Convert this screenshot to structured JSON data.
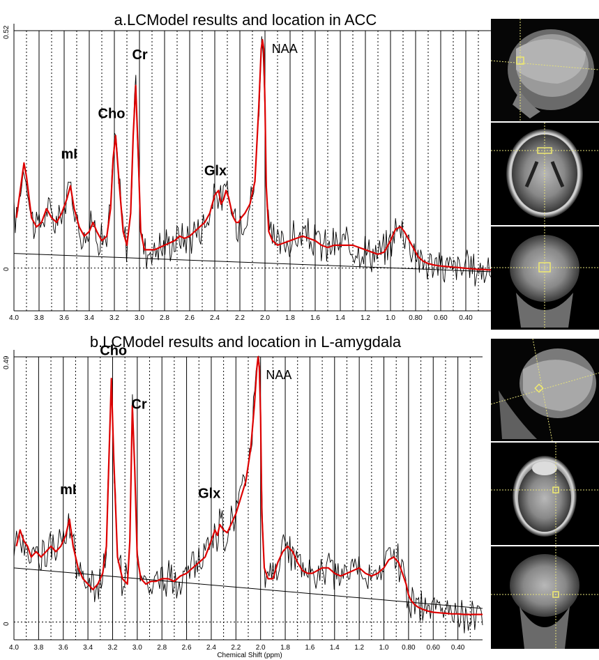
{
  "chart_data": [
    {
      "type": "line",
      "title": "a.LCModel results and location in ACC",
      "xlabel": "",
      "xlim": [
        4.0,
        0.2
      ],
      "x_ticks": [
        4.0,
        3.8,
        3.6,
        3.4,
        3.2,
        3.0,
        2.8,
        2.6,
        2.4,
        2.2,
        2.0,
        1.8,
        1.6,
        1.4,
        1.2,
        1.0,
        0.8,
        0.6,
        0.4
      ],
      "x_tick_labels": [
        "4.0",
        "3.8",
        "3.6",
        "3.4",
        "3.2",
        "3.0",
        "2.8",
        "2.6",
        "2.4",
        "2.2",
        "2.0",
        "1.8",
        "1.6",
        "1.4",
        "1.2",
        "1.0",
        "0.80",
        "0.60",
        "0.40"
      ],
      "ylim": [
        -0.08,
        0.52
      ],
      "y_tick_labels": [
        "0.52",
        "0"
      ],
      "peak_labels": [
        {
          "text": "mI",
          "ppm": 3.56
        },
        {
          "text": "Cho",
          "ppm": 3.2
        },
        {
          "text": "Cr",
          "ppm": 3.03
        },
        {
          "text": "Glx",
          "ppm": 2.35
        },
        {
          "text": "NAA",
          "ppm": 2.01
        }
      ],
      "series": [
        {
          "role": "fit",
          "color": "#dd0000",
          "x": [
            3.98,
            3.94,
            3.92,
            3.9,
            3.86,
            3.82,
            3.78,
            3.74,
            3.7,
            3.66,
            3.62,
            3.58,
            3.55,
            3.52,
            3.48,
            3.44,
            3.4,
            3.37,
            3.34,
            3.3,
            3.26,
            3.23,
            3.21,
            3.19,
            3.16,
            3.13,
            3.1,
            3.07,
            3.05,
            3.03,
            3.01,
            2.99,
            2.96,
            2.92,
            2.88,
            2.84,
            2.8,
            2.76,
            2.72,
            2.68,
            2.64,
            2.6,
            2.56,
            2.52,
            2.48,
            2.44,
            2.4,
            2.37,
            2.35,
            2.33,
            2.31,
            2.29,
            2.27,
            2.25,
            2.23,
            2.21,
            2.19,
            2.16,
            2.12,
            2.08,
            2.05,
            2.03,
            2.02,
            2.01,
            2.0,
            1.99,
            1.97,
            1.94,
            1.9,
            1.85,
            1.8,
            1.75,
            1.7,
            1.65,
            1.6,
            1.55,
            1.5,
            1.45,
            1.4,
            1.35,
            1.3,
            1.25,
            1.2,
            1.15,
            1.1,
            1.05,
            1.0,
            0.96,
            0.92,
            0.89,
            0.86,
            0.82,
            0.78,
            0.74,
            0.7,
            0.66,
            0.62,
            0.58,
            0.54,
            0.5,
            0.46,
            0.42,
            0.38,
            0.34,
            0.3,
            0.26,
            0.22,
            0.2
          ],
          "y": [
            0.11,
            0.19,
            0.23,
            0.2,
            0.11,
            0.09,
            0.1,
            0.13,
            0.11,
            0.1,
            0.12,
            0.15,
            0.18,
            0.13,
            0.09,
            0.07,
            0.08,
            0.1,
            0.08,
            0.06,
            0.07,
            0.13,
            0.24,
            0.29,
            0.18,
            0.08,
            0.05,
            0.12,
            0.29,
            0.4,
            0.25,
            0.08,
            0.04,
            0.04,
            0.04,
            0.045,
            0.05,
            0.055,
            0.06,
            0.07,
            0.065,
            0.07,
            0.08,
            0.09,
            0.1,
            0.12,
            0.16,
            0.17,
            0.14,
            0.15,
            0.17,
            0.155,
            0.13,
            0.11,
            0.1,
            0.1,
            0.11,
            0.12,
            0.14,
            0.19,
            0.35,
            0.48,
            0.5,
            0.48,
            0.36,
            0.18,
            0.08,
            0.06,
            0.05,
            0.055,
            0.06,
            0.065,
            0.07,
            0.065,
            0.06,
            0.05,
            0.045,
            0.05,
            0.05,
            0.05,
            0.05,
            0.045,
            0.04,
            0.035,
            0.03,
            0.035,
            0.06,
            0.085,
            0.09,
            0.08,
            0.065,
            0.045,
            0.025,
            0.015,
            0.01,
            0.007,
            0.005,
            0.004,
            0.003,
            0.002,
            0.001,
            0.0,
            -0.001,
            -0.002,
            -0.003,
            -0.003,
            -0.004,
            -0.004
          ]
        },
        {
          "role": "baseline",
          "color": "#000000",
          "x": [
            4.0,
            0.2
          ],
          "y": [
            0.032,
            -0.008
          ]
        }
      ]
    },
    {
      "type": "line",
      "title": "b.LCModel results and location in L-amygdala",
      "xlabel": "Chemical Shift (ppm)",
      "xlim": [
        4.0,
        0.2
      ],
      "x_ticks": [
        4.0,
        3.8,
        3.6,
        3.4,
        3.2,
        3.0,
        2.8,
        2.6,
        2.4,
        2.2,
        2.0,
        1.8,
        1.6,
        1.4,
        1.2,
        1.0,
        0.8,
        0.6,
        0.4
      ],
      "x_tick_labels": [
        "4.0",
        "3.8",
        "3.6",
        "3.4",
        "3.2",
        "3.0",
        "2.8",
        "2.6",
        "2.4",
        "2.2",
        "2.0",
        "1.8",
        "1.6",
        "1.4",
        "1.2",
        "1.0",
        "0.80",
        "0.60",
        "0.40"
      ],
      "ylim": [
        -0.02,
        0.49
      ],
      "y_tick_labels": [
        "0.49",
        "0"
      ],
      "peak_labels": [
        {
          "text": "mI",
          "ppm": 3.56
        },
        {
          "text": "Cho",
          "ppm": 3.21
        },
        {
          "text": "Cr",
          "ppm": 3.03
        },
        {
          "text": "Glx",
          "ppm": 2.37
        },
        {
          "text": "NAA",
          "ppm": 2.01
        }
      ],
      "series": [
        {
          "role": "fit",
          "color": "#dd0000",
          "x": [
            3.98,
            3.95,
            3.92,
            3.89,
            3.86,
            3.82,
            3.78,
            3.74,
            3.7,
            3.66,
            3.62,
            3.58,
            3.55,
            3.52,
            3.48,
            3.44,
            3.4,
            3.36,
            3.32,
            3.28,
            3.25,
            3.23,
            3.21,
            3.19,
            3.16,
            3.12,
            3.08,
            3.06,
            3.04,
            3.02,
            3.0,
            2.97,
            2.93,
            2.89,
            2.85,
            2.8,
            2.75,
            2.7,
            2.65,
            2.6,
            2.55,
            2.5,
            2.45,
            2.4,
            2.37,
            2.35,
            2.33,
            2.3,
            2.27,
            2.24,
            2.2,
            2.16,
            2.12,
            2.08,
            2.05,
            2.03,
            2.02,
            2.01,
            2.0,
            1.99,
            1.97,
            1.94,
            1.9,
            1.86,
            1.82,
            1.78,
            1.74,
            1.7,
            1.66,
            1.62,
            1.58,
            1.54,
            1.5,
            1.45,
            1.4,
            1.35,
            1.3,
            1.25,
            1.2,
            1.15,
            1.1,
            1.05,
            1.0,
            0.96,
            0.92,
            0.88,
            0.85,
            0.82,
            0.8,
            0.78,
            0.75,
            0.72,
            0.68,
            0.64,
            0.6,
            0.55,
            0.5,
            0.45,
            0.4,
            0.35,
            0.3,
            0.25,
            0.2
          ],
          "y": [
            0.14,
            0.17,
            0.15,
            0.14,
            0.12,
            0.13,
            0.12,
            0.13,
            0.14,
            0.13,
            0.14,
            0.16,
            0.19,
            0.14,
            0.1,
            0.08,
            0.07,
            0.06,
            0.07,
            0.09,
            0.14,
            0.3,
            0.45,
            0.3,
            0.12,
            0.08,
            0.07,
            0.15,
            0.4,
            0.28,
            0.12,
            0.08,
            0.07,
            0.075,
            0.075,
            0.08,
            0.08,
            0.075,
            0.085,
            0.09,
            0.1,
            0.11,
            0.12,
            0.15,
            0.17,
            0.16,
            0.18,
            0.17,
            0.165,
            0.18,
            0.2,
            0.23,
            0.26,
            0.32,
            0.4,
            0.47,
            0.49,
            0.47,
            0.38,
            0.2,
            0.1,
            0.08,
            0.08,
            0.11,
            0.13,
            0.14,
            0.13,
            0.11,
            0.095,
            0.09,
            0.09,
            0.095,
            0.1,
            0.1,
            0.09,
            0.085,
            0.09,
            0.095,
            0.1,
            0.09,
            0.085,
            0.09,
            0.1,
            0.115,
            0.12,
            0.11,
            0.09,
            0.07,
            0.05,
            0.04,
            0.032,
            0.027,
            0.023,
            0.02,
            0.018,
            0.017,
            0.016,
            0.015,
            0.015,
            0.014,
            0.014,
            0.014,
            0.014
          ]
        },
        {
          "role": "baseline",
          "color": "#000000",
          "x": [
            4.0,
            0.2
          ],
          "y": [
            0.1,
            0.025
          ]
        }
      ]
    }
  ],
  "images": [
    {
      "name": "acc-sagittal-mri"
    },
    {
      "name": "acc-axial-mri"
    },
    {
      "name": "acc-coronal-mri"
    },
    {
      "name": "amygdala-sagittal-mri"
    },
    {
      "name": "amygdala-axial-mri"
    },
    {
      "name": "amygdala-coronal-mri"
    }
  ]
}
